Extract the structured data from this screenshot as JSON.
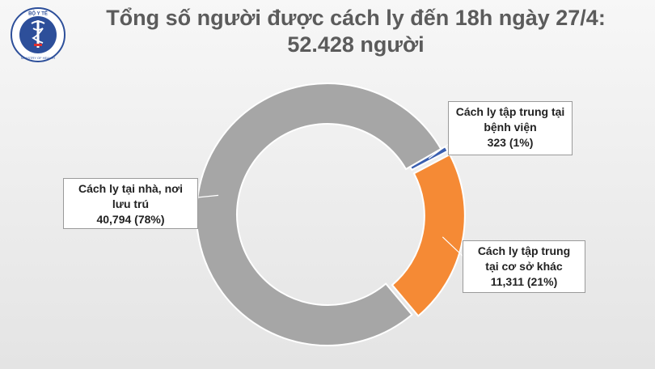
{
  "header": {
    "title_line1": "Tổng số người được cách ly đến 18h ngày 27/4:",
    "title_line2": "52.428 người"
  },
  "logo": {
    "icon": "ministry-of-health-caduceus-icon",
    "text_top": "BỘ Y TẾ",
    "text_bottom": "MINISTRY OF HEALTH"
  },
  "colors": {
    "home": "#a6a6a6",
    "facility": "#f58a35",
    "hospital": "#3a5fb0"
  },
  "chart_data": {
    "type": "pie",
    "donut": true,
    "categories": [
      "Cách ly tập trung tại bệnh viện",
      "Cách ly tập trung tại cơ sở khác",
      "Cách ly tại nhà, nơi lưu trú"
    ],
    "values": [
      323,
      11311,
      40794
    ],
    "percents": [
      "1%",
      "21%",
      "78%"
    ],
    "labels": {
      "hospital": {
        "line1": "Cách ly tập trung tại",
        "line2": "bệnh viện",
        "value": "323  (1%)"
      },
      "facility": {
        "line1": "Cách ly tập trung",
        "line2": "tại cơ sở khác",
        "value": "11,311  (21%)"
      },
      "home": {
        "line1": "Cách ly tại nhà, nơi",
        "line2": "lưu trú",
        "value": "40,794  (78%)"
      }
    }
  }
}
